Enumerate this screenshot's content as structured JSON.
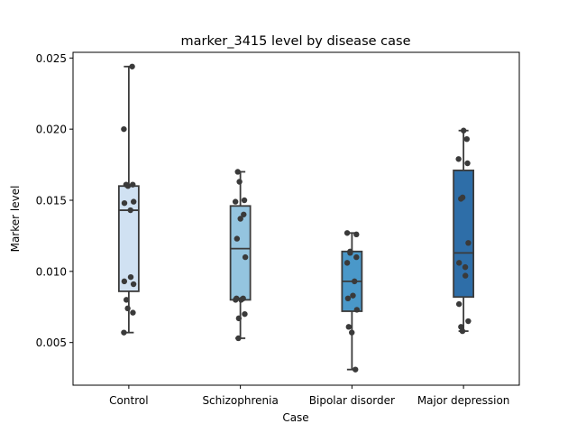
{
  "chart_data": {
    "type": "box",
    "title": "marker_3415 level by disease case",
    "xlabel": "Case",
    "ylabel": "Marker level",
    "ylim": [
      0.002,
      0.0254
    ],
    "yticks": [
      0.005,
      0.01,
      0.015,
      0.02,
      0.025
    ],
    "ytick_labels": [
      "0.005",
      "0.010",
      "0.015",
      "0.020",
      "0.025"
    ],
    "grid": false,
    "categories": [
      "Control",
      "Schizophrenia",
      "Bipolar disorder",
      "Major depression"
    ],
    "box_colors": [
      "#d0e1f2",
      "#94c4df",
      "#4a98c9",
      "#2e6ea8"
    ],
    "boxes": [
      {
        "whislo": 0.0057,
        "q1": 0.0086,
        "med": 0.0143,
        "q3": 0.016,
        "whishi": 0.0244
      },
      {
        "whislo": 0.0053,
        "q1": 0.008,
        "med": 0.0116,
        "q3": 0.0146,
        "whishi": 0.017
      },
      {
        "whislo": 0.0031,
        "q1": 0.0072,
        "med": 0.0093,
        "q3": 0.0114,
        "whishi": 0.0127
      },
      {
        "whislo": 0.0058,
        "q1": 0.0082,
        "med": 0.0113,
        "q3": 0.0171,
        "whishi": 0.0199
      }
    ],
    "points": [
      [
        0.0244,
        0.02,
        0.0161,
        0.016,
        0.0161,
        0.0149,
        0.0148,
        0.0143,
        0.0096,
        0.0093,
        0.0091,
        0.008,
        0.0074,
        0.0071,
        0.0057
      ],
      [
        0.017,
        0.0163,
        0.015,
        0.0149,
        0.014,
        0.0137,
        0.0123,
        0.011,
        0.0081,
        0.008,
        0.0081,
        0.008,
        0.007,
        0.0067,
        0.0053
      ],
      [
        0.0127,
        0.0126,
        0.0114,
        0.0113,
        0.011,
        0.0106,
        0.0093,
        0.0083,
        0.0081,
        0.0073,
        0.0061,
        0.0057,
        0.0031
      ],
      [
        0.0199,
        0.0193,
        0.0179,
        0.0176,
        0.0152,
        0.0151,
        0.012,
        0.0106,
        0.0103,
        0.0097,
        0.0077,
        0.0065,
        0.0061,
        0.0058
      ]
    ],
    "point_color": "#3a3a3a"
  }
}
